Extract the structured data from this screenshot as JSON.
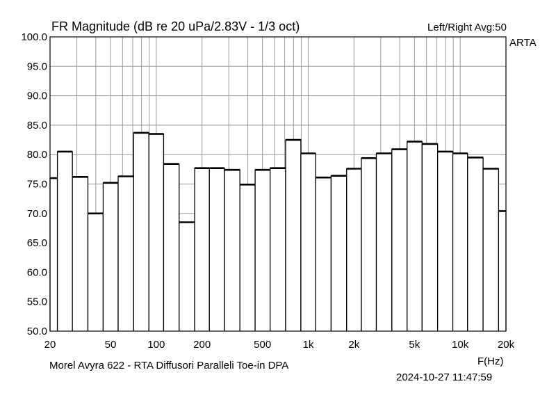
{
  "header": {
    "title": "FR Magnitude (dB re 20 uPa/2.83V - 1/3 oct)",
    "channel_info": "Left/Right  Avg:50",
    "brand": "ARTA"
  },
  "footer": {
    "note": "Morel Avyra 622 - RTA Diffusori Paralleli Toe-in     DPA",
    "timestamp": "2024-10-27  11:47:59"
  },
  "chart_data": {
    "type": "bar",
    "title": "FR Magnitude (dB re 20 uPa/2.83V - 1/3 oct)",
    "xlabel": "F(Hz)",
    "ylabel": "",
    "x_scale": "log",
    "xlim": [
      20,
      20000
    ],
    "ylim": [
      50,
      100
    ],
    "grid": true,
    "y_ticks": [
      "50.0",
      "55.0",
      "60.0",
      "65.0",
      "70.0",
      "75.0",
      "80.0",
      "85.0",
      "90.0",
      "95.0",
      "100.0"
    ],
    "x_ticks": [
      {
        "value": 20,
        "label": "20"
      },
      {
        "value": 50,
        "label": "50"
      },
      {
        "value": 100,
        "label": "100"
      },
      {
        "value": 200,
        "label": "200"
      },
      {
        "value": 500,
        "label": "500"
      },
      {
        "value": 1000,
        "label": "1k"
      },
      {
        "value": 2000,
        "label": "2k"
      },
      {
        "value": 5000,
        "label": "5k"
      },
      {
        "value": 10000,
        "label": "10k"
      },
      {
        "value": 20000,
        "label": "20k"
      }
    ],
    "categories": [
      20,
      25,
      31.5,
      40,
      50,
      63,
      80,
      100,
      125,
      160,
      200,
      250,
      315,
      400,
      500,
      630,
      800,
      1000,
      1250,
      1600,
      2000,
      2500,
      3150,
      4000,
      5000,
      6300,
      8000,
      10000,
      12500,
      16000,
      20000
    ],
    "values": [
      76.0,
      80.5,
      76.2,
      70.0,
      75.2,
      76.3,
      83.7,
      83.5,
      78.4,
      68.5,
      77.7,
      77.7,
      77.4,
      74.9,
      77.4,
      77.7,
      82.5,
      80.2,
      76.1,
      76.4,
      77.6,
      79.4,
      80.2,
      80.9,
      82.2,
      81.8,
      80.5,
      80.2,
      79.5,
      77.6,
      70.4
    ]
  }
}
